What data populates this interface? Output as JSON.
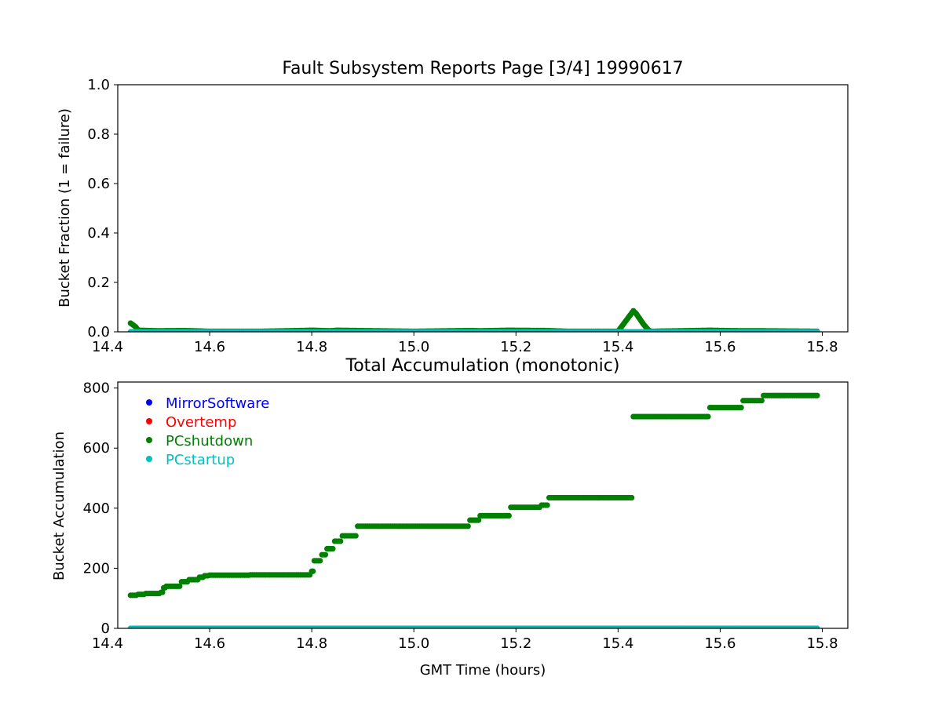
{
  "figure": {
    "background": "#ffffff"
  },
  "chart_data": [
    {
      "type": "scatter",
      "title": "Fault Subsystem Reports Page [3/4] 19990617",
      "xlabel": "",
      "ylabel": "Bucket Fraction (1 = failure)",
      "xlim": [
        14.42,
        15.85
      ],
      "ylim": [
        0.0,
        1.0
      ],
      "xticks": [
        14.4,
        14.6,
        14.8,
        15.0,
        15.2,
        15.4,
        15.6,
        15.8
      ],
      "xtick_labels": [
        "14.4",
        "14.6",
        "14.8",
        "15.0",
        "15.2",
        "15.4",
        "15.6",
        "15.8"
      ],
      "yticks": [
        0.0,
        0.2,
        0.4,
        0.6,
        0.8,
        1.0
      ],
      "ytick_labels": [
        "0.0",
        "0.2",
        "0.4",
        "0.6",
        "0.8",
        "1.0"
      ],
      "grid": false,
      "series": [
        {
          "name": "PCshutdown",
          "color": "#008000",
          "points": [
            [
              14.445,
              0.035
            ],
            [
              14.45,
              0.028
            ],
            [
              14.455,
              0.02
            ],
            [
              14.46,
              0.006
            ],
            [
              14.5,
              0.004
            ],
            [
              14.55,
              0.005
            ],
            [
              14.6,
              0.002
            ],
            [
              14.7,
              0.002
            ],
            [
              14.8,
              0.006
            ],
            [
              14.82,
              0.005
            ],
            [
              14.835,
              0.004
            ],
            [
              14.85,
              0.006
            ],
            [
              14.89,
              0.005
            ],
            [
              15.0,
              0.002
            ],
            [
              15.11,
              0.005
            ],
            [
              15.13,
              0.004
            ],
            [
              15.185,
              0.006
            ],
            [
              15.26,
              0.005
            ],
            [
              15.3,
              0.002
            ],
            [
              15.4,
              0.002
            ],
            [
              15.43,
              0.085
            ],
            [
              15.435,
              0.075
            ],
            [
              15.44,
              0.06
            ],
            [
              15.445,
              0.045
            ],
            [
              15.45,
              0.03
            ],
            [
              15.455,
              0.018
            ],
            [
              15.46,
              0.006
            ],
            [
              15.465,
              0.002
            ],
            [
              15.58,
              0.006
            ],
            [
              15.64,
              0.004
            ],
            [
              15.68,
              0.004
            ],
            [
              15.79,
              0.002
            ]
          ]
        },
        {
          "name": "PCstartup",
          "color": "#00bfbf",
          "points": [
            [
              14.445,
              0.0
            ],
            [
              14.6,
              0.0
            ],
            [
              14.8,
              0.0
            ],
            [
              15.0,
              0.0
            ],
            [
              15.2,
              0.0
            ],
            [
              15.415,
              0.0
            ],
            [
              15.43,
              0.0
            ],
            [
              15.6,
              0.0
            ],
            [
              15.79,
              0.0
            ]
          ]
        }
      ]
    },
    {
      "type": "scatter",
      "title": "Total Accumulation (monotonic)",
      "xlabel": "GMT Time (hours)",
      "ylabel": "Bucket Accumulation",
      "xlim": [
        14.42,
        15.85
      ],
      "ylim": [
        0,
        820
      ],
      "xticks": [
        14.4,
        14.6,
        14.8,
        15.0,
        15.2,
        15.4,
        15.6,
        15.8
      ],
      "xtick_labels": [
        "14.4",
        "14.6",
        "14.8",
        "15.0",
        "15.2",
        "15.4",
        "15.6",
        "15.8"
      ],
      "yticks": [
        0,
        200,
        400,
        600,
        800
      ],
      "ytick_labels": [
        "0",
        "200",
        "400",
        "600",
        "800"
      ],
      "grid": false,
      "legend": {
        "placement": "upper-left",
        "entries": [
          {
            "label": "MirrorSoftware",
            "color": "#0000ff"
          },
          {
            "label": "Overtemp",
            "color": "#ff0000"
          },
          {
            "label": "PCshutdown",
            "color": "#008000"
          },
          {
            "label": "PCstartup",
            "color": "#00bfbf"
          }
        ]
      },
      "series": [
        {
          "name": "PCshutdown",
          "color": "#008000",
          "steps": [
            [
              14.445,
              110
            ],
            [
              14.46,
              113
            ],
            [
              14.475,
              116
            ],
            [
              14.505,
              120
            ],
            [
              14.51,
              135
            ],
            [
              14.515,
              140
            ],
            [
              14.545,
              155
            ],
            [
              14.56,
              162
            ],
            [
              14.58,
              170
            ],
            [
              14.59,
              175
            ],
            [
              14.6,
              177
            ],
            [
              14.68,
              178
            ],
            [
              14.8,
              190
            ],
            [
              14.805,
              225
            ],
            [
              14.82,
              245
            ],
            [
              14.83,
              265
            ],
            [
              14.845,
              290
            ],
            [
              14.86,
              308
            ],
            [
              14.89,
              340
            ],
            [
              15.11,
              360
            ],
            [
              15.13,
              375
            ],
            [
              15.19,
              403
            ],
            [
              15.25,
              410
            ],
            [
              15.265,
              435
            ],
            [
              15.42,
              435
            ],
            [
              15.43,
              705
            ],
            [
              15.58,
              735
            ],
            [
              15.645,
              758
            ],
            [
              15.685,
              775
            ],
            [
              15.79,
              775
            ]
          ]
        },
        {
          "name": "PCstartup",
          "color": "#00bfbf",
          "steps": [
            [
              14.445,
              0
            ],
            [
              15.415,
              0
            ],
            [
              15.43,
              0
            ],
            [
              15.79,
              0
            ]
          ]
        }
      ]
    }
  ]
}
